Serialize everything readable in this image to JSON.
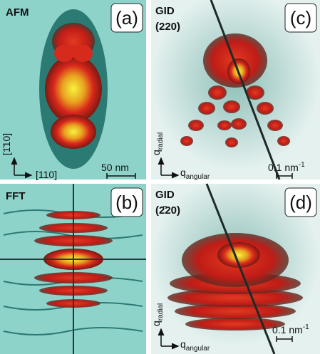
{
  "panels": [
    {
      "label": "(a)",
      "title": "AFM",
      "axes": {
        "vertical": "[1̄10]",
        "horizontal": "[110]"
      },
      "scale_bar": "50 nm"
    },
    {
      "label": "(c)",
      "title": [
        "GID",
        "(220)"
      ],
      "axes": {
        "vertical": {
          "symbol": "q",
          "subscript": "radial"
        },
        "horizontal": {
          "symbol": "q",
          "subscript": "angular"
        }
      },
      "scale_bar": {
        "text": "0.1 nm",
        "superscript": "-1"
      }
    },
    {
      "label": "(b)",
      "title": "FFT"
    },
    {
      "label": "(d)",
      "title": [
        "GID",
        "(2̄20)"
      ],
      "axes": {
        "vertical": {
          "symbol": "q",
          "subscript": "radial"
        },
        "horizontal": {
          "symbol": "q",
          "subscript": "angular"
        }
      },
      "scale_bar": {
        "text": "0.1 nm",
        "superscript": "-1"
      }
    }
  ]
}
